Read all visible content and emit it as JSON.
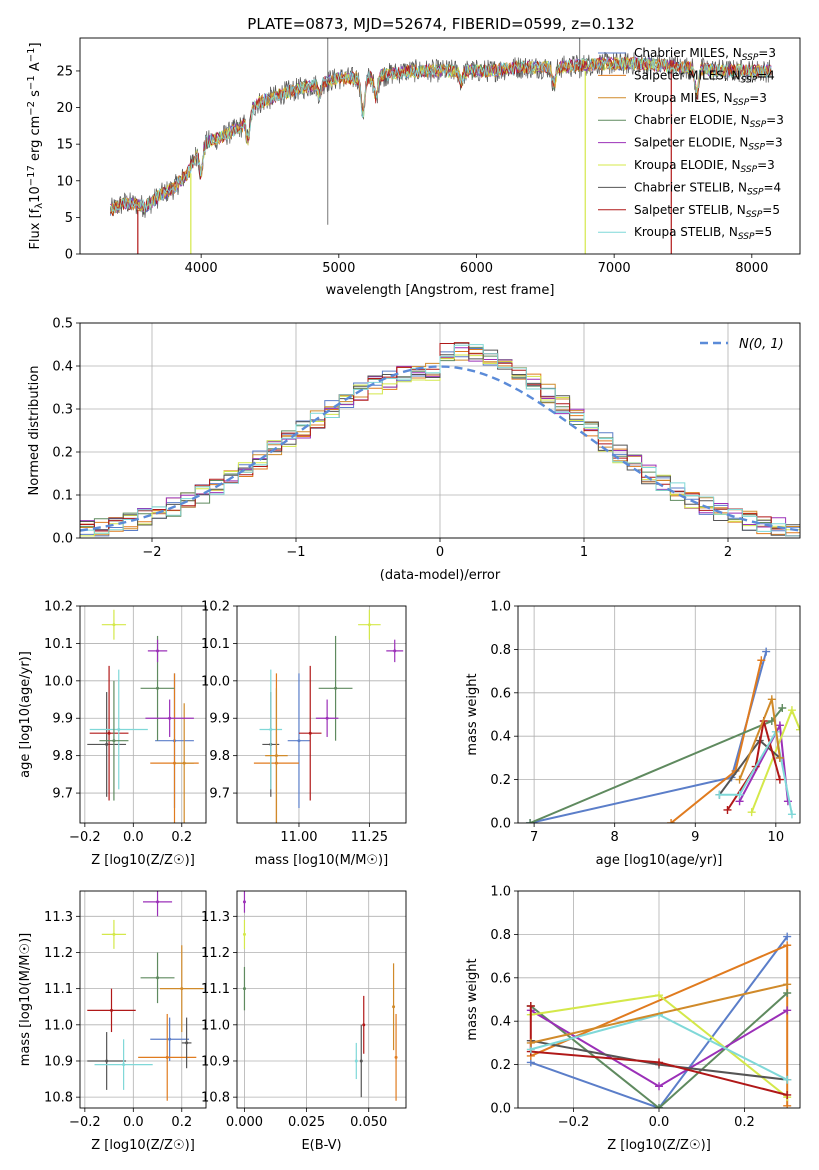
{
  "title": "PLATE=0873, MJD=52674, FIBERID=0599, z=0.132",
  "models": [
    {
      "name": "Chabrier MILES, N$_{SSP}$=3",
      "label": "Chabrier MILES, N",
      "n": "3",
      "color": "#5b7ec9"
    },
    {
      "name": "Salpeter MILES, N$_{SSP}$=4",
      "label": "Salpeter MILES, N",
      "n": "4",
      "color": "#e07b1f"
    },
    {
      "name": "Kroupa MILES, N$_{SSP}$=3",
      "label": "Kroupa MILES, N",
      "n": "3",
      "color": "#d08a2a"
    },
    {
      "name": "Chabrier ELODIE, N$_{SSP}$=3",
      "label": "Chabrier ELODIE, N",
      "n": "3",
      "color": "#5f8a5f"
    },
    {
      "name": "Salpeter ELODIE, N$_{SSP}$=3",
      "label": "Salpeter ELODIE, N",
      "n": "3",
      "color": "#9b30b8"
    },
    {
      "name": "Kroupa ELODIE, N$_{SSP}$=3",
      "label": "Kroupa ELODIE, N",
      "n": "3",
      "color": "#d4e84a"
    },
    {
      "name": "Chabrier STELIB, N$_{SSP}$=4",
      "label": "Chabrier STELIB, N",
      "n": "4",
      "color": "#555555"
    },
    {
      "name": "Salpeter STELIB, N$_{SSP}$=5",
      "label": "Salpeter STELIB, N",
      "n": "5",
      "color": "#b01818"
    },
    {
      "name": "Kroupa STELIB, N$_{SSP}$=5",
      "label": "Kroupa STELIB, N",
      "n": "5",
      "color": "#7fd8d8"
    }
  ],
  "chart_data": [
    {
      "id": "spectrum",
      "type": "line",
      "xlabel": "wavelength [Angstrom, rest frame]",
      "ylabel": "Flux [f_λ 10^-17 erg cm^-2 s^-1 A^-1]",
      "xlim": [
        3120,
        8350
      ],
      "ylim": [
        0,
        29.5
      ],
      "xticks": [
        4000,
        5000,
        6000,
        7000,
        8000
      ],
      "yticks": [
        0,
        5,
        10,
        15,
        20,
        25
      ],
      "grid": false,
      "legend_position": "top-right",
      "data_range": [
        3340,
        8140
      ],
      "continuum": [
        [
          3340,
          6
        ],
        [
          3450,
          7
        ],
        [
          3600,
          6.5
        ],
        [
          3700,
          8
        ],
        [
          3800,
          9
        ],
        [
          3900,
          11
        ],
        [
          4000,
          15
        ],
        [
          4150,
          16
        ],
        [
          4300,
          17.5
        ],
        [
          4400,
          20.5
        ],
        [
          4600,
          22
        ],
        [
          4800,
          23
        ],
        [
          5000,
          24
        ],
        [
          5200,
          24
        ],
        [
          5500,
          25
        ],
        [
          5800,
          25
        ],
        [
          6100,
          25
        ],
        [
          6300,
          25.5
        ],
        [
          6600,
          25.5
        ],
        [
          6900,
          26
        ],
        [
          7200,
          26
        ],
        [
          7500,
          25.5
        ],
        [
          7800,
          25
        ],
        [
          8140,
          25
        ]
      ],
      "features": [
        [
          4000,
          -4
        ],
        [
          4340,
          -3
        ],
        [
          4861,
          -1.5
        ],
        [
          5175,
          -5
        ],
        [
          5270,
          -3
        ],
        [
          5890,
          -1.5
        ],
        [
          6563,
          -2.5
        ],
        [
          7600,
          -3.5
        ]
      ]
    },
    {
      "id": "residual-histogram",
      "type": "bar",
      "xlabel": "(data-model)/error",
      "ylabel": "Normed distribution",
      "xlim": [
        -2.5,
        2.5
      ],
      "ylim": [
        0,
        0.5
      ],
      "xticks": [
        -2,
        -1,
        0,
        1,
        2
      ],
      "yticks": [
        0.0,
        0.1,
        0.2,
        0.3,
        0.4,
        0.5
      ],
      "grid": true,
      "legend_position": "top-right",
      "gaussian_label": "N(0, 1)",
      "bin_width": 0.1
    },
    {
      "id": "age-vs-Z",
      "type": "scatter",
      "xlabel": "Z [log10(Z/Z☉)]",
      "ylabel": "age [log10(age/yr)]",
      "xlim": [
        -0.22,
        0.3
      ],
      "ylim": [
        9.62,
        10.2
      ],
      "xticks": [
        -0.2,
        0.0,
        0.2
      ],
      "yticks": [
        9.7,
        9.8,
        9.9,
        10.0,
        10.1,
        10.2
      ],
      "grid": true,
      "points": [
        {
          "m": 0,
          "x": 0.17,
          "y": 9.84,
          "ex": 0.08,
          "ey": 0.18
        },
        {
          "m": 1,
          "x": 0.17,
          "y": 9.78,
          "ex": 0.1,
          "ey": 0.24
        },
        {
          "m": 2,
          "x": 0.21,
          "y": 9.78,
          "ex": 0.04,
          "ey": 0.16
        },
        {
          "m": 3,
          "x": 0.1,
          "y": 9.98,
          "ex": 0.07,
          "ey": 0.14
        },
        {
          "m": 4,
          "x": 0.1,
          "y": 10.08,
          "ex": 0.04,
          "ey": 0.03
        },
        {
          "m": 4,
          "x": 0.15,
          "y": 9.9,
          "ex": 0.1,
          "ey": 0.05
        },
        {
          "m": 5,
          "x": -0.08,
          "y": 10.15,
          "ex": 0.05,
          "ey": 0.04
        },
        {
          "m": 6,
          "x": -0.11,
          "y": 9.83,
          "ex": 0.08,
          "ey": 0.14
        },
        {
          "m": 7,
          "x": -0.1,
          "y": 9.86,
          "ex": 0.08,
          "ey": 0.18
        },
        {
          "m": 8,
          "x": -0.06,
          "y": 9.87,
          "ex": 0.12,
          "ey": 0.16
        },
        {
          "m": 3,
          "x": -0.08,
          "y": 9.84,
          "ex": 0.06,
          "ey": 0.16
        }
      ]
    },
    {
      "id": "age-vs-mass",
      "type": "scatter",
      "xlabel": "mass [log10(M/M☉)]",
      "ylabel": "",
      "xlim": [
        10.78,
        11.38
      ],
      "ylim": [
        9.62,
        10.2
      ],
      "xticks": [
        11.0,
        11.25
      ],
      "yticks": [
        9.7,
        9.8,
        9.9,
        10.0,
        10.1,
        10.2
      ],
      "grid": true,
      "points": [
        {
          "m": 0,
          "x": 11.0,
          "y": 9.84,
          "ex": 0.04,
          "ey": 0.18
        },
        {
          "m": 1,
          "x": 10.92,
          "y": 9.78,
          "ex": 0.08,
          "ey": 0.24
        },
        {
          "m": 3,
          "x": 11.13,
          "y": 9.98,
          "ex": 0.06,
          "ey": 0.14
        },
        {
          "m": 4,
          "x": 11.34,
          "y": 10.08,
          "ex": 0.03,
          "ey": 0.03
        },
        {
          "m": 4,
          "x": 11.1,
          "y": 9.9,
          "ex": 0.04,
          "ey": 0.05
        },
        {
          "m": 5,
          "x": 11.25,
          "y": 10.15,
          "ex": 0.04,
          "ey": 0.04
        },
        {
          "m": 6,
          "x": 10.9,
          "y": 9.83,
          "ex": 0.03,
          "ey": 0.14
        },
        {
          "m": 7,
          "x": 11.04,
          "y": 9.86,
          "ex": 0.04,
          "ey": 0.18
        },
        {
          "m": 8,
          "x": 10.9,
          "y": 9.87,
          "ex": 0.04,
          "ey": 0.16
        },
        {
          "m": 2,
          "x": 10.92,
          "y": 9.8,
          "ex": 0.04,
          "ey": 0.18
        }
      ]
    },
    {
      "id": "mass-weight-vs-age",
      "type": "line",
      "xlabel": "age [log10(age/yr)]",
      "ylabel": "mass weight",
      "xlim": [
        6.8,
        10.3
      ],
      "ylim": [
        0,
        1
      ],
      "xticks": [
        7,
        8,
        9,
        10
      ],
      "yticks": [
        0.0,
        0.2,
        0.4,
        0.6,
        0.8,
        1.0
      ],
      "grid": true,
      "series": [
        {
          "m": 0,
          "x": [
            6.95,
            9.45,
            9.88
          ],
          "y": [
            0.0,
            0.21,
            0.79
          ]
        },
        {
          "m": 1,
          "x": [
            8.7,
            9.5,
            9.82
          ],
          "y": [
            0.0,
            0.24,
            0.75
          ]
        },
        {
          "m": 3,
          "x": [
            6.95,
            9.95,
            10.08
          ],
          "y": [
            0.0,
            0.47,
            0.53
          ]
        },
        {
          "m": 4,
          "x": [
            9.55,
            10.05,
            10.15
          ],
          "y": [
            0.1,
            0.45,
            0.1
          ]
        },
        {
          "m": 5,
          "x": [
            9.7,
            10.2,
            10.3
          ],
          "y": [
            0.05,
            0.52,
            0.43
          ]
        },
        {
          "m": 6,
          "x": [
            9.3,
            9.8,
            10.05
          ],
          "y": [
            0.13,
            0.38,
            0.3
          ]
        },
        {
          "m": 7,
          "x": [
            9.4,
            9.75,
            9.85,
            10.05
          ],
          "y": [
            0.06,
            0.26,
            0.47,
            0.2
          ]
        },
        {
          "m": 8,
          "x": [
            9.3,
            9.55,
            10.0,
            10.2
          ],
          "y": [
            0.13,
            0.13,
            0.42,
            0.04
          ]
        },
        {
          "m": 2,
          "x": [
            9.55,
            9.95,
            10.05
          ],
          "y": [
            0.2,
            0.57,
            0.3
          ]
        }
      ]
    },
    {
      "id": "mass-vs-Z",
      "type": "scatter",
      "xlabel": "Z [log10(Z/Z☉)]",
      "ylabel": "mass [log10(M/M☉)]",
      "xlim": [
        -0.22,
        0.3
      ],
      "ylim": [
        10.77,
        11.37
      ],
      "xticks": [
        -0.2,
        0.0,
        0.2
      ],
      "yticks": [
        10.8,
        10.9,
        11.0,
        11.1,
        11.2,
        11.3
      ],
      "grid": true,
      "points": [
        {
          "m": 0,
          "x": 0.15,
          "y": 10.96,
          "ex": 0.08,
          "ey": 0.06
        },
        {
          "m": 1,
          "x": 0.14,
          "y": 10.91,
          "ex": 0.12,
          "ey": 0.12
        },
        {
          "m": 2,
          "x": 0.2,
          "y": 11.1,
          "ex": 0.09,
          "ey": 0.12
        },
        {
          "m": 3,
          "x": 0.1,
          "y": 11.13,
          "ex": 0.07,
          "ey": 0.07
        },
        {
          "m": 4,
          "x": 0.1,
          "y": 11.34,
          "ex": 0.06,
          "ey": 0.04
        },
        {
          "m": 5,
          "x": -0.08,
          "y": 11.25,
          "ex": 0.05,
          "ey": 0.04
        },
        {
          "m": 6,
          "x": -0.11,
          "y": 10.9,
          "ex": 0.08,
          "ey": 0.08
        },
        {
          "m": 7,
          "x": -0.09,
          "y": 11.04,
          "ex": 0.1,
          "ey": 0.06
        },
        {
          "m": 8,
          "x": -0.04,
          "y": 10.89,
          "ex": 0.12,
          "ey": 0.07
        },
        {
          "m": 6,
          "x": 0.22,
          "y": 10.95,
          "ex": 0.02,
          "ey": 0.07
        }
      ]
    },
    {
      "id": "mass-vs-EBV",
      "type": "scatter",
      "xlabel": "E(B-V)",
      "ylabel": "",
      "xlim": [
        -0.003,
        0.065
      ],
      "ylim": [
        10.77,
        11.37
      ],
      "xticks": [
        0.0,
        0.025,
        0.05
      ],
      "yticks": [
        10.8,
        10.9,
        11.0,
        11.1,
        11.2,
        11.3
      ],
      "grid": true,
      "points": [
        {
          "m": 4,
          "x": 0.0,
          "y": 11.34,
          "ex": 0,
          "ey": 0.03
        },
        {
          "m": 5,
          "x": 0.0,
          "y": 11.25,
          "ex": 0,
          "ey": 0.04
        },
        {
          "m": 3,
          "x": 0.0,
          "y": 11.1,
          "ex": 0,
          "ey": 0.06
        },
        {
          "m": 8,
          "x": 0.045,
          "y": 10.9,
          "ex": 0,
          "ey": 0.05
        },
        {
          "m": 6,
          "x": 0.047,
          "y": 10.9,
          "ex": 0,
          "ey": 0.1
        },
        {
          "m": 7,
          "x": 0.048,
          "y": 11.0,
          "ex": 0,
          "ey": 0.08
        },
        {
          "m": 2,
          "x": 0.06,
          "y": 11.05,
          "ex": 0,
          "ey": 0.12
        },
        {
          "m": 1,
          "x": 0.061,
          "y": 10.91,
          "ex": 0,
          "ey": 0.12
        }
      ]
    },
    {
      "id": "mass-weight-vs-Z",
      "type": "line",
      "xlabel": "Z [log10(Z/Z☉)]",
      "ylabel": "mass weight",
      "xlim": [
        -0.33,
        0.33
      ],
      "ylim": [
        0,
        1
      ],
      "xticks": [
        -0.2,
        0.0,
        0.2
      ],
      "yticks": [
        0.0,
        0.2,
        0.4,
        0.6,
        0.8,
        1.0
      ],
      "grid": true,
      "series": [
        {
          "m": 0,
          "x": [
            -0.3,
            0.0,
            0.3
          ],
          "y": [
            0.21,
            0.0,
            0.79
          ]
        },
        {
          "m": 1,
          "x": [
            -0.3,
            0.3,
            0.3
          ],
          "y": [
            0.24,
            0.75,
            0.01
          ]
        },
        {
          "m": 3,
          "x": [
            -0.3,
            0.0,
            0.3
          ],
          "y": [
            0.47,
            0.0,
            0.53
          ]
        },
        {
          "m": 4,
          "x": [
            -0.3,
            0.0,
            0.3
          ],
          "y": [
            0.45,
            0.1,
            0.45
          ]
        },
        {
          "m": 5,
          "x": [
            -0.3,
            0.0,
            0.3
          ],
          "y": [
            0.43,
            0.52,
            0.05
          ]
        },
        {
          "m": 6,
          "x": [
            -0.3,
            0.0,
            0.3
          ],
          "y": [
            0.31,
            0.2,
            0.13
          ]
        },
        {
          "m": 7,
          "x": [
            -0.3,
            -0.3,
            0.0,
            0.3
          ],
          "y": [
            0.47,
            0.26,
            0.21,
            0.06
          ]
        },
        {
          "m": 8,
          "x": [
            -0.3,
            0.0,
            0.3
          ],
          "y": [
            0.27,
            0.43,
            0.13
          ]
        },
        {
          "m": 2,
          "x": [
            -0.3,
            0.3
          ],
          "y": [
            0.3,
            0.57
          ]
        }
      ]
    }
  ]
}
